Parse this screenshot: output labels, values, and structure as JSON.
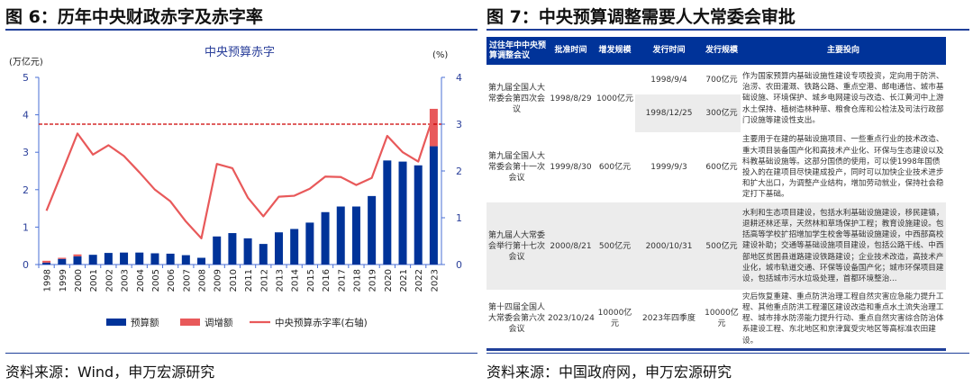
{
  "left": {
    "title": "图 6：历年中央财政赤字及赤字率",
    "source": "资料来源：Wind，申万宏源研究"
  },
  "right": {
    "title": "图 7：中央预算调整需要人大常委会审批",
    "source": "资料来源：中国政府网，申万宏源研究",
    "table": {
      "headers": [
        "过往年中中央预算调整会议",
        "批准时间",
        "增发规模",
        "发行时间",
        "发行规模",
        "主要投向"
      ],
      "rows": [
        {
          "meeting": "第九届全国人大常委会第四次会议",
          "approved": "1998/8/29",
          "scale": "1000亿元",
          "issues": [
            {
              "date": "1998/9/4",
              "amount": "700亿元"
            },
            {
              "date": "1998/12/25",
              "amount": "300亿元"
            }
          ],
          "use": "作为国家预算内基础设施性建设专项投资，定向用于防洪、治涝、农田灌溉、铁路公路、重点空港、邮电通信、城市基础设施、环境保护、城乡电网建设与改造、长江黄河中上游水土保持、植树造林种草、粮食仓库和公检法及司法行政部门设施等建设性支出。"
        },
        {
          "meeting": "第九届全国人大常委会第十一次会议",
          "approved": "1999/8/30",
          "scale": "600亿元",
          "issues": [
            {
              "date": "1999/9/3",
              "amount": "600亿元"
            }
          ],
          "use": "主要用于在建的基础设施项目、一些重点行业的技术改造、重大项目装备国产化和高技术产业化、环保与生态建设以及科教基础设施等。这部分国债的使用，可以使1998年国债投入的在建项目尽快建成投产，同时可以加快企业技术进步和扩大出口，为调整产业结构，增加劳动就业，保持社会稳定打下基础。"
        },
        {
          "meeting": "第九届人大常委会举行第十七次会议",
          "approved": "2000/8/21",
          "scale": "500亿元",
          "issues": [
            {
              "date": "2000/10/31",
              "amount": "500亿元"
            }
          ],
          "use": "水利和生态项目建设，包括水利基础设施建设，移民建镇，退耕还林还草，天然林和草场保护工程；教育设施建设。包括高等学校扩招增加学生校舍等基础设施建设，中西部高校建设补助；交通等基础设施项目建设，包括公路干线、中西部地区贫困县道路建设铁路建设；企业技术改造，高技术产业化，城市轨道交通、环保等设备国产化；城市环保项目建设，包括城市污水垃圾处理，首都环境整治..."
        },
        {
          "meeting": "第十四届全国人大常委会第六次会议",
          "approved": "2023/10/24",
          "scale": "10000亿元",
          "issues": [
            {
              "date": "2023年四季度",
              "amount": "10000亿元"
            }
          ],
          "use": "灾后恢复重建、重点防洪治理工程自然灾害应急能力提升工程、其他重点防洪工程灌区建设改造和重点水土流失治理工程、城市排水防涝能力提升行动、重点自然灾害综合防治体系建设工程、东北地区和京津冀受灾地区等高标准农田建设。"
        }
      ]
    }
  },
  "chart_data": {
    "type": "bar+line",
    "title": "中央预算赤字",
    "ylabel": "(万亿元)",
    "y2label": "(%)",
    "ylim": [
      0,
      5
    ],
    "y2lim": [
      0,
      4
    ],
    "yticks": [
      "0",
      "1",
      "2",
      "3",
      "4",
      "5"
    ],
    "y2ticks": [
      "0",
      "1",
      "2",
      "3",
      "4"
    ],
    "categories": [
      "1998",
      "1999",
      "2000",
      "2001",
      "2002",
      "2003",
      "2004",
      "2005",
      "2006",
      "2007",
      "2008",
      "2009",
      "2010",
      "2011",
      "2012",
      "2013",
      "2014",
      "2015",
      "2016",
      "2017",
      "2018",
      "2019",
      "2020",
      "2021",
      "2022",
      "2023"
    ],
    "series": [
      {
        "name": "预算额",
        "type": "bar",
        "color": "#003399",
        "values": [
          0.05,
          0.15,
          0.22,
          0.26,
          0.31,
          0.32,
          0.32,
          0.3,
          0.29,
          0.25,
          0.18,
          0.75,
          0.84,
          0.7,
          0.55,
          0.86,
          0.95,
          1.12,
          1.4,
          1.55,
          1.55,
          1.83,
          2.78,
          2.75,
          2.65,
          3.16
        ]
      },
      {
        "name": "调增额",
        "type": "bar-stacked",
        "color": "#e8595a",
        "values": [
          0.05,
          0.03,
          0.05,
          0,
          0,
          0,
          0,
          0,
          0,
          0,
          0,
          0,
          0,
          0,
          0,
          0,
          0,
          0,
          0,
          0,
          0,
          0,
          0,
          0,
          0,
          1.0
        ]
      },
      {
        "name": "中央预算赤字率(右轴)",
        "type": "line",
        "axis": "right",
        "color": "#e8595a",
        "values": [
          1.15,
          1.97,
          2.8,
          2.35,
          2.55,
          2.32,
          1.97,
          1.6,
          1.35,
          0.92,
          0.56,
          2.15,
          2.06,
          1.43,
          1.03,
          1.45,
          1.47,
          1.62,
          1.88,
          1.87,
          1.7,
          1.85,
          2.75,
          2.4,
          2.2,
          3.2
        ]
      }
    ],
    "reference_line": {
      "axis": "right",
      "value": 3,
      "color": "#cc0000",
      "style": "dashed"
    },
    "legend": "bottom"
  }
}
